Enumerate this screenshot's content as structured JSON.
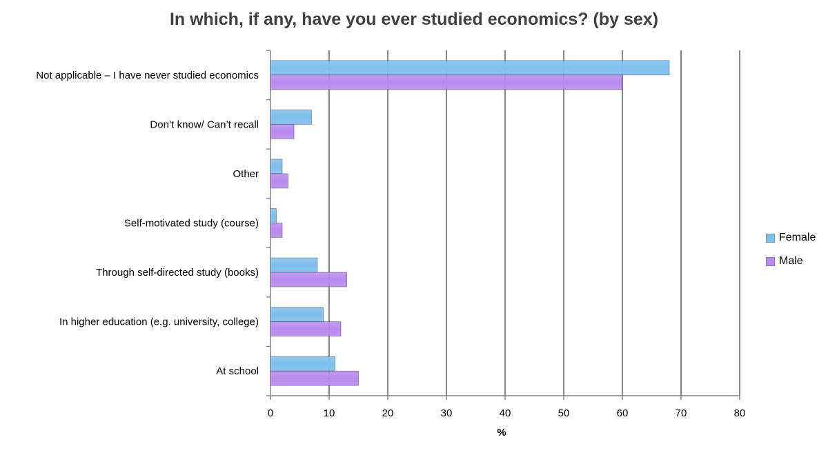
{
  "chart_data": {
    "type": "bar",
    "orientation": "horizontal",
    "title": "In which, if any, have you ever studied economics? (by sex)",
    "xlabel": "%",
    "ylabel": "",
    "xlim": [
      0,
      80
    ],
    "xticks": [
      0,
      10,
      20,
      30,
      40,
      50,
      60,
      70,
      80
    ],
    "grid": true,
    "legend_position": "right",
    "categories": [
      "Not applicable – I have never studied economics",
      "Don’t know/ Can’t recall",
      "Other",
      "Self-motivated study (course)",
      "Through self-directed study (books)",
      "In higher education (e.g. university, college)",
      "At school"
    ],
    "series": [
      {
        "name": "Female",
        "color": "#7fbfec",
        "values": [
          68,
          7,
          2,
          1,
          8,
          9,
          11
        ]
      },
      {
        "name": "Male",
        "color": "#b98aed",
        "values": [
          60,
          4,
          3,
          2,
          13,
          12,
          15
        ]
      }
    ]
  }
}
